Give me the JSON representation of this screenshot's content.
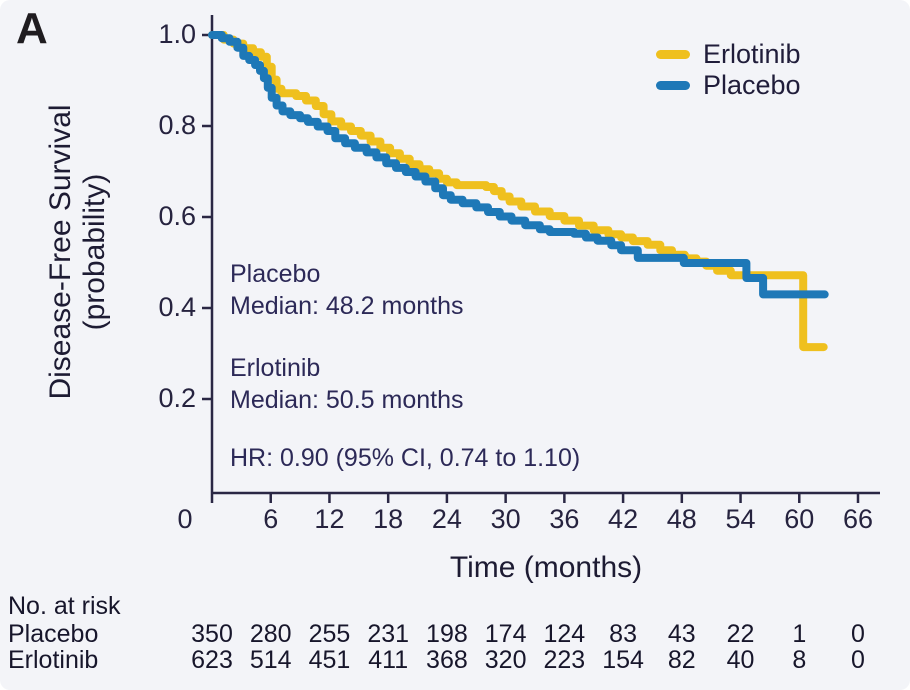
{
  "panel_label": "A",
  "colors": {
    "erlotinib": "#efc01e",
    "placebo": "#1e78b7",
    "axis": "#2a2744",
    "text": "#26233f",
    "annotation": "#2c2957",
    "background": "#f3f4f8"
  },
  "y_axis": {
    "label_line1": "Disease-Free Survival",
    "label_line2": "(probability)",
    "tick_labels": [
      "1.0",
      "0.8",
      "0.6",
      "0.4",
      "0.2"
    ]
  },
  "x_axis": {
    "label": "Time (months)"
  },
  "legend": [
    {
      "label": "Erlotinib",
      "color_key": "erlotinib"
    },
    {
      "label": "Placebo",
      "color_key": "placebo"
    }
  ],
  "annotations": {
    "placebo_name": "Placebo",
    "placebo_median": "Median: 48.2 months",
    "erlotinib_name": "Erlotinib",
    "erlotinib_median": "Median: 50.5 months",
    "hazard_ratio": "HR: 0.90 (95% CI, 0.74 to 1.10)"
  },
  "at_risk": {
    "title": "No. at risk",
    "rows": [
      {
        "label": "Placebo",
        "counts": [
          350,
          280,
          255,
          231,
          198,
          174,
          124,
          83,
          43,
          22,
          1,
          0
        ]
      },
      {
        "label": "Erlotinib",
        "counts": [
          623,
          514,
          451,
          411,
          368,
          320,
          223,
          154,
          82,
          40,
          8,
          0
        ]
      }
    ]
  },
  "chart_data": {
    "type": "line",
    "subtype": "kaplan-meier-step",
    "title": "",
    "xlabel": "Time (months)",
    "ylabel": "Disease-Free Survival (probability)",
    "xlim": [
      0,
      66
    ],
    "ylim": [
      0,
      1.0
    ],
    "x_ticks": [
      0,
      6,
      12,
      18,
      24,
      30,
      36,
      42,
      48,
      54,
      60,
      66
    ],
    "y_ticks": [
      1.0,
      0.8,
      0.6,
      0.4,
      0.2
    ],
    "grid": false,
    "legend_position": "top-right",
    "hazard_ratio": "HR: 0.90 (95% CI, 0.74 to 1.10)",
    "series": [
      {
        "name": "Erlotinib",
        "color_key": "erlotinib",
        "median_months": 50.5,
        "steps": [
          [
            0,
            1.0
          ],
          [
            1.2,
            0.99
          ],
          [
            2.2,
            0.981
          ],
          [
            3.2,
            0.971
          ],
          [
            4.2,
            0.962
          ],
          [
            5,
            0.952
          ],
          [
            5.6,
            0.93
          ],
          [
            6.1,
            0.902
          ],
          [
            6.6,
            0.882
          ],
          [
            7.1,
            0.872
          ],
          [
            8.6,
            0.866
          ],
          [
            9.6,
            0.856
          ],
          [
            10.6,
            0.844
          ],
          [
            11.4,
            0.826
          ],
          [
            12.2,
            0.81
          ],
          [
            13.2,
            0.799
          ],
          [
            14.2,
            0.789
          ],
          [
            15.2,
            0.779
          ],
          [
            16.2,
            0.766
          ],
          [
            17.2,
            0.752
          ],
          [
            18.2,
            0.74
          ],
          [
            19.2,
            0.728
          ],
          [
            20.2,
            0.716
          ],
          [
            21.2,
            0.705
          ],
          [
            22.2,
            0.696
          ],
          [
            23.2,
            0.684
          ],
          [
            24,
            0.676
          ],
          [
            25,
            0.67
          ],
          [
            28,
            0.666
          ],
          [
            28.8,
            0.657
          ],
          [
            29.6,
            0.645
          ],
          [
            30.4,
            0.634
          ],
          [
            31.6,
            0.623
          ],
          [
            33,
            0.612
          ],
          [
            34.5,
            0.602
          ],
          [
            36,
            0.592
          ],
          [
            37.5,
            0.581
          ],
          [
            39,
            0.571
          ],
          [
            40.5,
            0.562
          ],
          [
            41.8,
            0.555
          ],
          [
            43,
            0.547
          ],
          [
            44.5,
            0.539
          ],
          [
            45.8,
            0.527
          ],
          [
            47,
            0.517
          ],
          [
            48.3,
            0.509
          ],
          [
            49.5,
            0.502
          ],
          [
            50.5,
            0.493
          ],
          [
            51.6,
            0.482
          ],
          [
            53,
            0.472
          ],
          [
            60.4,
            0.314
          ],
          [
            62.5,
            0.314
          ]
        ]
      },
      {
        "name": "Placebo",
        "color_key": "placebo",
        "median_months": 48.2,
        "steps": [
          [
            0,
            1.0
          ],
          [
            1,
            0.993
          ],
          [
            1.8,
            0.985
          ],
          [
            2.6,
            0.972
          ],
          [
            3.2,
            0.954
          ],
          [
            3.8,
            0.945
          ],
          [
            4.4,
            0.934
          ],
          [
            4.9,
            0.921
          ],
          [
            5.3,
            0.905
          ],
          [
            5.7,
            0.884
          ],
          [
            6.1,
            0.862
          ],
          [
            6.6,
            0.845
          ],
          [
            7.2,
            0.832
          ],
          [
            8,
            0.824
          ],
          [
            9,
            0.817
          ],
          [
            9.8,
            0.809
          ],
          [
            10.8,
            0.799
          ],
          [
            11.8,
            0.789
          ],
          [
            12.6,
            0.773
          ],
          [
            13.6,
            0.762
          ],
          [
            14.6,
            0.752
          ],
          [
            15.8,
            0.742
          ],
          [
            16.8,
            0.731
          ],
          [
            17.8,
            0.718
          ],
          [
            18.8,
            0.708
          ],
          [
            19.8,
            0.699
          ],
          [
            20.8,
            0.689
          ],
          [
            21.8,
            0.678
          ],
          [
            22.8,
            0.663
          ],
          [
            23.6,
            0.648
          ],
          [
            24.4,
            0.638
          ],
          [
            25.6,
            0.63
          ],
          [
            27,
            0.621
          ],
          [
            28.2,
            0.611
          ],
          [
            29.4,
            0.601
          ],
          [
            30.6,
            0.592
          ],
          [
            32,
            0.582
          ],
          [
            33.5,
            0.573
          ],
          [
            34.5,
            0.567
          ],
          [
            37,
            0.563
          ],
          [
            38.2,
            0.555
          ],
          [
            39.4,
            0.548
          ],
          [
            40.8,
            0.538
          ],
          [
            41.8,
            0.527
          ],
          [
            43.5,
            0.51
          ],
          [
            48.2,
            0.499
          ],
          [
            54.6,
            0.466
          ],
          [
            56.3,
            0.43
          ],
          [
            62.6,
            0.43
          ]
        ]
      }
    ]
  }
}
